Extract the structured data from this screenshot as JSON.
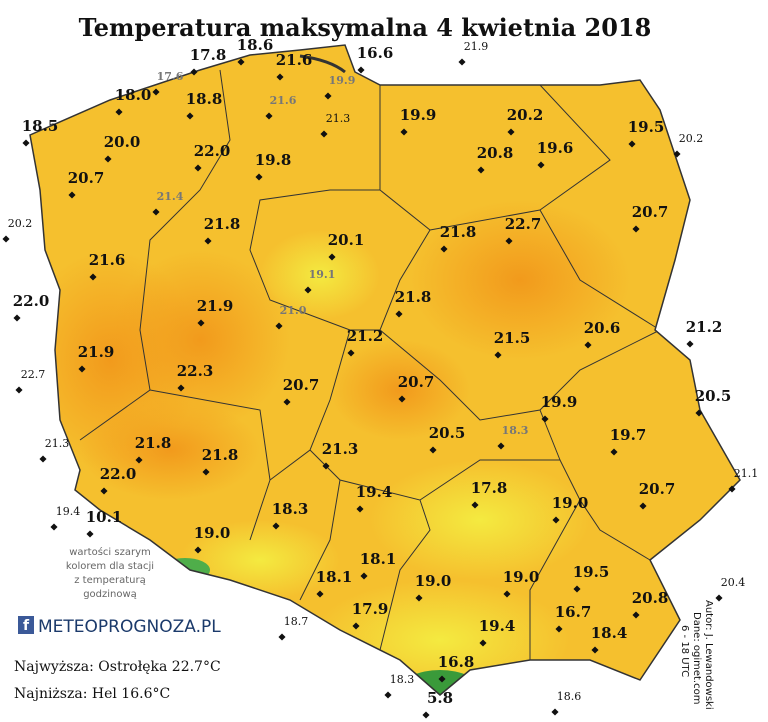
{
  "title": "Temperatura maksymalna 4 kwietnia 2018",
  "stations": [
    "17.8",
    "18.6",
    "21.6",
    "16.6",
    "18.0",
    "18.8",
    "18.5",
    "20.0",
    "22.0",
    "20.7",
    "19.8",
    "19.9",
    "20.2",
    "20.8",
    "19.6",
    "19.5",
    "20.7",
    "21.8",
    "20.1",
    "21.8",
    "22.7",
    "21.6",
    "22.0",
    "21.9",
    "21.8",
    "21.2",
    "21.5",
    "20.6",
    "21.2",
    "21.9",
    "22.3",
    "20.7",
    "20.7",
    "20.5",
    "19.9",
    "19.7",
    "21.8",
    "21.8",
    "21.3",
    "20.5",
    "22.0",
    "17.8",
    "19.4",
    "19.0",
    "20.7",
    "10.1",
    "18.3",
    "19.0",
    "18.1",
    "18.1",
    "19.0",
    "19.0",
    "19.5",
    "17.9",
    "16.7",
    "20.8",
    "19.4",
    "18.4",
    "16.8",
    "5.8"
  ],
  "small_stations": [
    "21.9",
    "20.2",
    "22.7",
    "21.3",
    "19.4",
    "20.2",
    "21.1",
    "20.4",
    "18.7",
    "18.3",
    "18.6",
    "21.3"
  ],
  "gray_stations": [
    "17.6",
    "19.9",
    "21.6",
    "21.4",
    "19.1",
    "21.0",
    "18.3"
  ],
  "note": [
    "wartości szarym",
    "kolorem dla stacji",
    "z temperaturą",
    "godzinową"
  ],
  "logo": "METEOPROGNOZA.PL",
  "extremes": [
    "Najwyższa: Ostrołęka 22.7°C",
    "Najniższa: Hel 16.6°C"
  ],
  "credits": [
    "Autor: J. Lewandowski",
    "Dane: ogimet.com",
    "6 - 18 UTC"
  ]
}
